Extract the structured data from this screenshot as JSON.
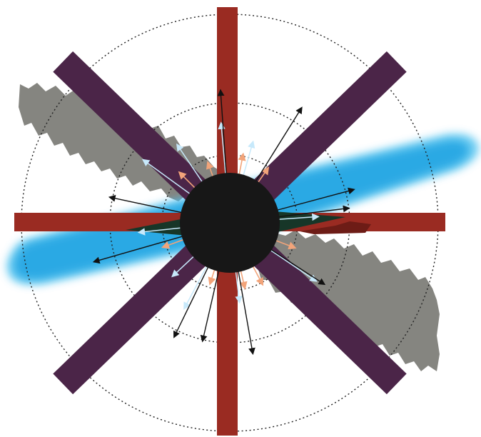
{
  "diagram": {
    "colors": {
      "background": "#ffffff",
      "gray_band": "#858580",
      "blue_band": "#2aa9e4",
      "blue_band_edge": "#55c4f0",
      "red_bar": "#9a2b22",
      "purple_bar": "#4b2548",
      "center_disk": "#171717",
      "dark_green": "#173628",
      "dotted_circle": "#222222",
      "arrow_black": "#111111",
      "arrow_light_blue": "#c7e9fb",
      "arrow_orange": "#f2a47a"
    },
    "black_arrow_angles_deg": [
      -94,
      -58,
      -168,
      -15,
      164,
      -7,
      33,
      116,
      80,
      103
    ],
    "blue_arrow_angles_deg": [
      -95,
      -74,
      -124,
      -144,
      -4,
      174,
      137,
      34,
      83,
      118
    ],
    "orange_arrow_angles_deg": [
      -79,
      -110,
      -55,
      -135,
      62,
      108,
      77,
      160,
      21
    ],
    "dotted_circle_count": 3
  }
}
